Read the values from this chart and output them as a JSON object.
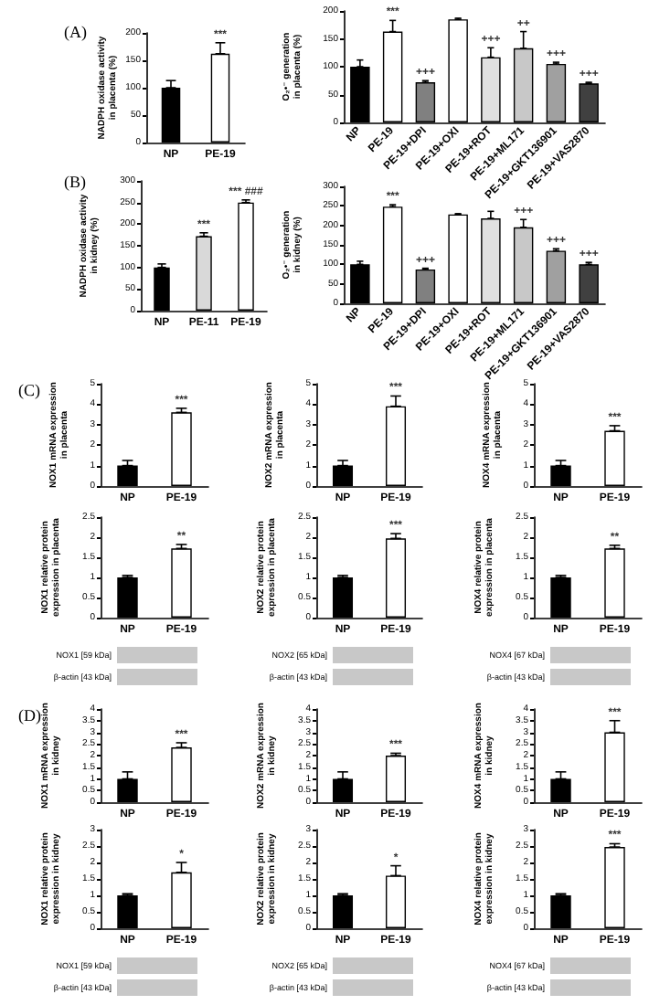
{
  "chart_data": [
    {
      "type": "bar",
      "title": "(A)",
      "ylabel": "NADPH oxidase activity in placenta (%)",
      "categories": [
        "NP",
        "PE-19"
      ],
      "values": [
        100,
        162
      ],
      "colors": [
        "#000000",
        "#ffffff"
      ],
      "errors": [
        [
          100,
          113
        ],
        [
          162,
          182
        ]
      ],
      "ylim": [
        0,
        200
      ],
      "yticks": [
        0,
        50,
        100,
        150,
        200
      ],
      "annotations": [
        {
          "text": "***",
          "x": "PE-19",
          "y": 182
        }
      ]
    },
    {
      "type": "bar",
      "ylabel": "O₂•⁻ generation in placenta (%)",
      "categories": [
        "NP",
        "PE-19",
        "PE-19+DPI",
        "PE-19+OXI",
        "PE-19+ROT",
        "PE-19+ML171",
        "PE-19+GKT136901",
        "PE-19+VAS2870"
      ],
      "values": [
        100,
        163,
        72,
        185,
        117,
        133,
        105,
        70
      ],
      "colors": [
        "#000000",
        "#ffffff",
        "#808080",
        "#ffffff",
        "#e0e0e0",
        "#c8c8c8",
        "#a0a0a0",
        "#404040"
      ],
      "errors": [
        [
          100,
          112
        ],
        [
          163,
          183
        ],
        [
          72,
          75
        ],
        [
          185,
          187
        ],
        [
          117,
          134
        ],
        [
          133,
          163
        ],
        [
          105,
          108
        ],
        [
          70,
          72
        ]
      ],
      "ylim": [
        0,
        200
      ],
      "yticks": [
        0,
        50,
        100,
        150,
        200
      ],
      "annotations": [
        {
          "text": "***",
          "x": "PE-19",
          "y": 183
        },
        {
          "text": "+++",
          "x": "PE-19+DPI",
          "y": 75
        },
        {
          "text": "+++",
          "x": "PE-19+ROT",
          "y": 134
        },
        {
          "text": "++",
          "x": "PE-19+ML171",
          "y": 163
        },
        {
          "text": "+++",
          "x": "PE-19+GKT136901",
          "y": 108
        },
        {
          "text": "+++",
          "x": "PE-19+VAS2870",
          "y": 72
        }
      ]
    },
    {
      "type": "bar",
      "title": "(B)",
      "ylabel": "NADPH oxidase activity in kidney (%)",
      "categories": [
        "NP",
        "PE-11",
        "PE-19"
      ],
      "values": [
        100,
        172,
        250
      ],
      "colors": [
        "#000000",
        "#d9d9d9",
        "#ffffff"
      ],
      "errors": [
        [
          100,
          108
        ],
        [
          172,
          180
        ],
        [
          250,
          256
        ]
      ],
      "ylim": [
        0,
        300
      ],
      "yticks": [
        0,
        50,
        100,
        150,
        200,
        250,
        300
      ],
      "annotations": [
        {
          "text": "***",
          "x": "PE-11",
          "y": 180
        },
        {
          "text": "*** ###",
          "x": "PE-19",
          "y": 256
        }
      ]
    },
    {
      "type": "bar",
      "ylabel": "O₂•⁻ generation in kidney (%)",
      "categories": [
        "NP",
        "PE-19",
        "PE-19+DPI",
        "PE-19+OXI",
        "PE-19+ROT",
        "PE-19+ML171",
        "PE-19+GKT136901",
        "PE-19+VAS2870"
      ],
      "values": [
        100,
        248,
        87,
        228,
        218,
        195,
        135,
        100
      ],
      "colors": [
        "#000000",
        "#ffffff",
        "#808080",
        "#ffffff",
        "#e0e0e0",
        "#c8c8c8",
        "#a0a0a0",
        "#404040"
      ],
      "errors": [
        [
          100,
          108
        ],
        [
          248,
          253
        ],
        [
          87,
          90
        ],
        [
          228,
          230
        ],
        [
          218,
          236
        ],
        [
          195,
          215
        ],
        [
          135,
          140
        ],
        [
          100,
          105
        ]
      ],
      "ylim": [
        0,
        300
      ],
      "yticks": [
        0,
        50,
        100,
        150,
        200,
        250,
        300
      ],
      "annotations": [
        {
          "text": "***",
          "x": "PE-19",
          "y": 253
        },
        {
          "text": "+++",
          "x": "PE-19+DPI",
          "y": 90
        },
        {
          "text": "+++",
          "x": "PE-19+ML171",
          "y": 215
        },
        {
          "text": "+++",
          "x": "PE-19+GKT136901",
          "y": 140
        },
        {
          "text": "+++",
          "x": "PE-19+VAS2870",
          "y": 105
        }
      ]
    },
    {
      "type": "bar",
      "title": "(C)",
      "ylabel": "NOX1 mRNA expression in placenta",
      "categories": [
        "NP",
        "PE-19"
      ],
      "values": [
        1,
        3.6
      ],
      "colors": [
        "#000000",
        "#ffffff"
      ],
      "errors": [
        [
          1,
          1.25
        ],
        [
          3.6,
          3.8
        ]
      ],
      "ylim": [
        0,
        5
      ],
      "yticks": [
        0,
        1,
        2,
        3,
        4,
        5
      ],
      "annotations": [
        {
          "text": "***",
          "x": "PE-19",
          "y": 3.8
        }
      ]
    },
    {
      "type": "bar",
      "ylabel": "NOX2 mRNA expression in placenta",
      "categories": [
        "NP",
        "PE-19"
      ],
      "values": [
        1,
        3.9
      ],
      "colors": [
        "#000000",
        "#ffffff"
      ],
      "errors": [
        [
          1,
          1.25
        ],
        [
          3.9,
          4.4
        ]
      ],
      "ylim": [
        0,
        5
      ],
      "yticks": [
        0,
        1,
        2,
        3,
        4,
        5
      ],
      "annotations": [
        {
          "text": "***",
          "x": "PE-19",
          "y": 4.4
        }
      ]
    },
    {
      "type": "bar",
      "ylabel": "NOX4 mRNA expression in placenta",
      "categories": [
        "NP",
        "PE-19"
      ],
      "values": [
        1,
        2.7
      ],
      "colors": [
        "#000000",
        "#ffffff"
      ],
      "errors": [
        [
          1,
          1.25
        ],
        [
          2.7,
          2.95
        ]
      ],
      "ylim": [
        0,
        5
      ],
      "yticks": [
        0,
        1,
        2,
        3,
        4,
        5
      ],
      "annotations": [
        {
          "text": "***",
          "x": "PE-19",
          "y": 2.95
        }
      ]
    },
    {
      "type": "bar",
      "ylabel": "NOX1 relative protein expression in placenta",
      "categories": [
        "NP",
        "PE-19"
      ],
      "values": [
        1,
        1.72
      ],
      "colors": [
        "#000000",
        "#ffffff"
      ],
      "errors": [
        [
          1,
          1.05
        ],
        [
          1.72,
          1.82
        ]
      ],
      "ylim": [
        0,
        2.5
      ],
      "yticks": [
        0,
        0.5,
        1,
        1.5,
        2,
        2.5
      ],
      "annotations": [
        {
          "text": "**",
          "x": "PE-19",
          "y": 1.82
        },
        "NOX1 [59 kDa]",
        "β-actin [43 kDa]"
      ]
    },
    {
      "type": "bar",
      "ylabel": "NOX2 relative protein expression in placenta",
      "categories": [
        "NP",
        "PE-19"
      ],
      "values": [
        1,
        1.97
      ],
      "colors": [
        "#000000",
        "#ffffff"
      ],
      "errors": [
        [
          1,
          1.05
        ],
        [
          1.97,
          2.09
        ]
      ],
      "ylim": [
        0,
        2.5
      ],
      "yticks": [
        0,
        0.5,
        1,
        1.5,
        2,
        2.5
      ],
      "annotations": [
        {
          "text": "***",
          "x": "PE-19",
          "y": 2.09
        },
        "NOX2 [65 kDa]",
        "β-actin [43 kDa]"
      ]
    },
    {
      "type": "bar",
      "ylabel": "NOX4 relative protein expression in placenta",
      "categories": [
        "NP",
        "PE-19"
      ],
      "values": [
        1,
        1.72
      ],
      "colors": [
        "#000000",
        "#ffffff"
      ],
      "errors": [
        [
          1,
          1.05
        ],
        [
          1.72,
          1.8
        ]
      ],
      "ylim": [
        0,
        2.5
      ],
      "yticks": [
        0,
        0.5,
        1,
        1.5,
        2,
        2.5
      ],
      "annotations": [
        {
          "text": "**",
          "x": "PE-19",
          "y": 1.8
        },
        "NOX4 [67 kDa]",
        "β-actin [43 kDa]"
      ]
    },
    {
      "type": "bar",
      "title": "(D)",
      "ylabel": "NOX1 mRNA expression in kidney",
      "categories": [
        "NP",
        "PE-19"
      ],
      "values": [
        1,
        2.35
      ],
      "colors": [
        "#000000",
        "#ffffff"
      ],
      "errors": [
        [
          1,
          1.3
        ],
        [
          2.35,
          2.55
        ]
      ],
      "ylim": [
        0,
        4
      ],
      "yticks": [
        0,
        0.5,
        1,
        1.5,
        2,
        2.5,
        3,
        3.5,
        4
      ],
      "annotations": [
        {
          "text": "***",
          "x": "PE-19",
          "y": 2.55
        }
      ]
    },
    {
      "type": "bar",
      "ylabel": "NOX2 mRNA expression in kidney",
      "categories": [
        "NP",
        "PE-19"
      ],
      "values": [
        1,
        2
      ],
      "colors": [
        "#000000",
        "#ffffff"
      ],
      "errors": [
        [
          1,
          1.3
        ],
        [
          2,
          2.1
        ]
      ],
      "ylim": [
        0,
        4
      ],
      "yticks": [
        0,
        0.5,
        1,
        1.5,
        2,
        2.5,
        3,
        3.5,
        4
      ],
      "annotations": [
        {
          "text": "***",
          "x": "PE-19",
          "y": 2.1
        }
      ]
    },
    {
      "type": "bar",
      "ylabel": "NOX4 mRNA expression in kidney",
      "categories": [
        "NP",
        "PE-19"
      ],
      "values": [
        1,
        3
      ],
      "colors": [
        "#000000",
        "#ffffff"
      ],
      "errors": [
        [
          1,
          1.3
        ],
        [
          3,
          3.5
        ]
      ],
      "ylim": [
        0,
        4
      ],
      "yticks": [
        0,
        0.5,
        1,
        1.5,
        2,
        2.5,
        3,
        3.5,
        4
      ],
      "annotations": [
        {
          "text": "***",
          "x": "PE-19",
          "y": 3.5
        }
      ]
    },
    {
      "type": "bar",
      "ylabel": "NOX1 relative protein expression in kidney",
      "categories": [
        "NP",
        "PE-19"
      ],
      "values": [
        1,
        1.7
      ],
      "colors": [
        "#000000",
        "#ffffff"
      ],
      "errors": [
        [
          1,
          1.05
        ],
        [
          1.7,
          2
        ]
      ],
      "ylim": [
        0,
        3
      ],
      "yticks": [
        0,
        0.5,
        1,
        1.5,
        2,
        2.5,
        3
      ],
      "annotations": [
        {
          "text": "*",
          "x": "PE-19",
          "y": 2
        },
        "NOX1 [59 kDa]",
        "β-actin [43 kDa]"
      ]
    },
    {
      "type": "bar",
      "ylabel": "NOX2 relative protein expression in kidney",
      "categories": [
        "NP",
        "PE-19"
      ],
      "values": [
        1,
        1.6
      ],
      "colors": [
        "#000000",
        "#ffffff"
      ],
      "errors": [
        [
          1,
          1.05
        ],
        [
          1.6,
          1.9
        ]
      ],
      "ylim": [
        0,
        3
      ],
      "yticks": [
        0,
        0.5,
        1,
        1.5,
        2,
        2.5,
        3
      ],
      "annotations": [
        {
          "text": "*",
          "x": "PE-19",
          "y": 1.9
        },
        "NOX2 [65 kDa]",
        "β-actin [43 kDa]"
      ]
    },
    {
      "type": "bar",
      "ylabel": "NOX4 relative protein expression in kidney",
      "categories": [
        "NP",
        "PE-19"
      ],
      "values": [
        1,
        2.47
      ],
      "colors": [
        "#000000",
        "#ffffff"
      ],
      "errors": [
        [
          1,
          1.05
        ],
        [
          2.47,
          2.57
        ]
      ],
      "ylim": [
        0,
        3
      ],
      "yticks": [
        0,
        0.5,
        1,
        1.5,
        2,
        2.5,
        3
      ],
      "annotations": [
        {
          "text": "***",
          "x": "PE-19",
          "y": 2.57
        },
        "NOX4 [67 kDa]",
        "β-actin [43 kDa]"
      ]
    }
  ]
}
